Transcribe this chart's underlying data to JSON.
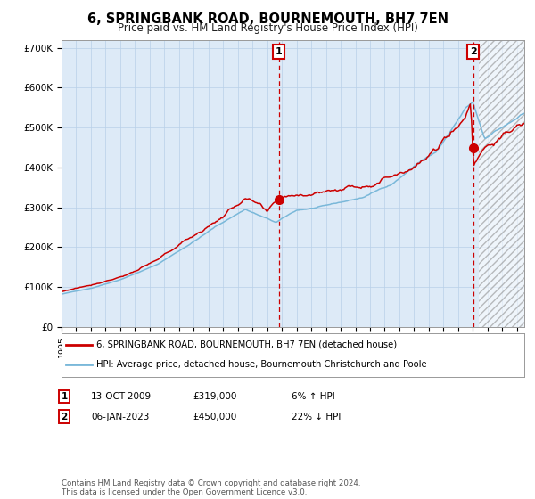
{
  "title": "6, SPRINGBANK ROAD, BOURNEMOUTH, BH7 7EN",
  "subtitle": "Price paid vs. HM Land Registry's House Price Index (HPI)",
  "legend_line1": "6, SPRINGBANK ROAD, BOURNEMOUTH, BH7 7EN (detached house)",
  "legend_line2": "HPI: Average price, detached house, Bournemouth Christchurch and Poole",
  "annotation1_label": "1",
  "annotation1_date": "13-OCT-2009",
  "annotation1_price": "£319,000",
  "annotation1_hpi": "6% ↑ HPI",
  "annotation2_label": "2",
  "annotation2_date": "06-JAN-2023",
  "annotation2_price": "£450,000",
  "annotation2_hpi": "22% ↓ HPI",
  "sale1_year": 2009.79,
  "sale1_price": 319000,
  "sale2_year": 2023.02,
  "sale2_price": 450000,
  "hpi_color": "#7ab8d9",
  "price_color": "#cc0000",
  "marker_color": "#cc0000",
  "dashed_color": "#cc0000",
  "bg_color": "#ffffff",
  "plot_bg_color": "#ddeaf7",
  "footer": "Contains HM Land Registry data © Crown copyright and database right 2024.\nThis data is licensed under the Open Government Licence v3.0.",
  "ylim": [
    0,
    720000
  ],
  "xlim_start": 1995.0,
  "xlim_end": 2026.5,
  "hatch_start": 2023.42
}
